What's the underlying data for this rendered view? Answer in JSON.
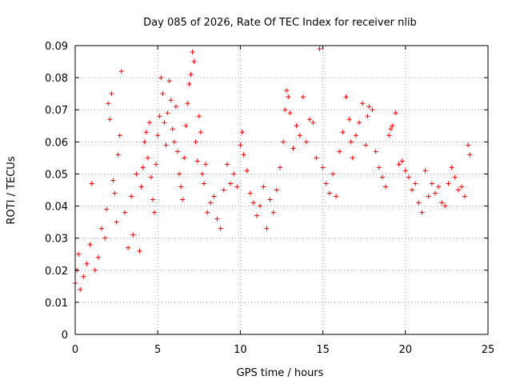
{
  "chart_data": {
    "type": "scatter",
    "title": "Day 085 of 2026, Rate Of TEC Index for receiver nlib",
    "xlabel": "GPS time / hours",
    "ylabel": "ROTI / TECUs",
    "xlim": [
      0,
      25
    ],
    "ylim": [
      0,
      0.09
    ],
    "x_ticks": [
      "0",
      "5",
      "10",
      "15",
      "20",
      "25"
    ],
    "y_ticks": [
      "0",
      "0.01",
      "0.02",
      "0.03",
      "0.04",
      "0.05",
      "0.06",
      "0.07",
      "0.08",
      "0.09"
    ],
    "grid": true,
    "marker": "+",
    "series": [
      {
        "color": "#ff0000",
        "x": [
          0.0,
          0.1,
          0.2,
          0.3,
          0.5,
          0.7,
          0.9,
          1.0,
          1.2,
          1.4,
          1.6,
          1.8,
          1.9,
          2.0,
          2.1,
          2.2,
          2.3,
          2.4,
          2.5,
          2.6,
          2.7,
          2.8,
          3.0,
          3.2,
          3.4,
          3.5,
          3.7,
          3.9,
          4.0,
          4.1,
          4.2,
          4.3,
          4.4,
          4.5,
          4.6,
          4.7,
          4.8,
          4.9,
          5.0,
          5.1,
          5.2,
          5.3,
          5.4,
          5.5,
          5.6,
          5.7,
          5.8,
          5.9,
          6.0,
          6.1,
          6.2,
          6.3,
          6.4,
          6.5,
          6.6,
          6.7,
          6.8,
          6.9,
          7.0,
          7.1,
          7.2,
          7.3,
          7.4,
          7.5,
          7.6,
          7.7,
          7.8,
          7.9,
          8.0,
          8.2,
          8.4,
          8.6,
          8.8,
          9.0,
          9.2,
          9.4,
          9.6,
          9.8,
          10.0,
          10.1,
          10.2,
          10.4,
          10.6,
          10.8,
          11.0,
          11.2,
          11.4,
          11.6,
          11.8,
          12.0,
          12.2,
          12.4,
          12.6,
          12.7,
          12.8,
          12.9,
          13.0,
          13.2,
          13.4,
          13.6,
          13.8,
          14.0,
          14.2,
          14.4,
          14.6,
          14.8,
          15.0,
          15.2,
          15.4,
          15.6,
          15.8,
          16.0,
          16.2,
          16.4,
          16.6,
          16.7,
          16.8,
          17.0,
          17.2,
          17.4,
          17.6,
          17.7,
          17.8,
          18.0,
          18.2,
          18.4,
          18.6,
          18.8,
          19.0,
          19.1,
          19.2,
          19.4,
          19.6,
          19.8,
          20.0,
          20.2,
          20.4,
          20.6,
          20.8,
          21.0,
          21.2,
          21.4,
          21.6,
          21.8,
          22.0,
          22.2,
          22.4,
          22.6,
          22.8,
          23.0,
          23.2,
          23.4,
          23.6,
          23.8,
          23.9
        ],
        "y": [
          0.016,
          0.02,
          0.025,
          0.014,
          0.018,
          0.022,
          0.028,
          0.047,
          0.02,
          0.024,
          0.033,
          0.03,
          0.039,
          0.072,
          0.067,
          0.075,
          0.048,
          0.044,
          0.035,
          0.056,
          0.062,
          0.082,
          0.038,
          0.027,
          0.043,
          0.031,
          0.05,
          0.026,
          0.046,
          0.052,
          0.06,
          0.063,
          0.055,
          0.066,
          0.049,
          0.042,
          0.038,
          0.053,
          0.062,
          0.068,
          0.08,
          0.075,
          0.066,
          0.059,
          0.069,
          0.079,
          0.073,
          0.064,
          0.06,
          0.071,
          0.057,
          0.05,
          0.046,
          0.042,
          0.055,
          0.065,
          0.072,
          0.078,
          0.081,
          0.088,
          0.085,
          0.06,
          0.054,
          0.068,
          0.063,
          0.05,
          0.047,
          0.053,
          0.038,
          0.041,
          0.043,
          0.036,
          0.033,
          0.045,
          0.053,
          0.047,
          0.05,
          0.046,
          0.059,
          0.063,
          0.056,
          0.051,
          0.044,
          0.041,
          0.037,
          0.04,
          0.046,
          0.033,
          0.042,
          0.038,
          0.045,
          0.052,
          0.06,
          0.07,
          0.076,
          0.074,
          0.069,
          0.058,
          0.065,
          0.062,
          0.074,
          0.06,
          0.067,
          0.066,
          0.055,
          0.089,
          0.052,
          0.047,
          0.044,
          0.05,
          0.043,
          0.057,
          0.063,
          0.074,
          0.067,
          0.06,
          0.055,
          0.062,
          0.066,
          0.072,
          0.059,
          0.068,
          0.071,
          0.07,
          0.057,
          0.052,
          0.049,
          0.046,
          0.062,
          0.064,
          0.065,
          0.069,
          0.053,
          0.054,
          0.051,
          0.049,
          0.045,
          0.047,
          0.041,
          0.038,
          0.051,
          0.043,
          0.047,
          0.044,
          0.046,
          0.041,
          0.04,
          0.047,
          0.052,
          0.049,
          0.045,
          0.046,
          0.043,
          0.059,
          0.056
        ]
      }
    ]
  }
}
